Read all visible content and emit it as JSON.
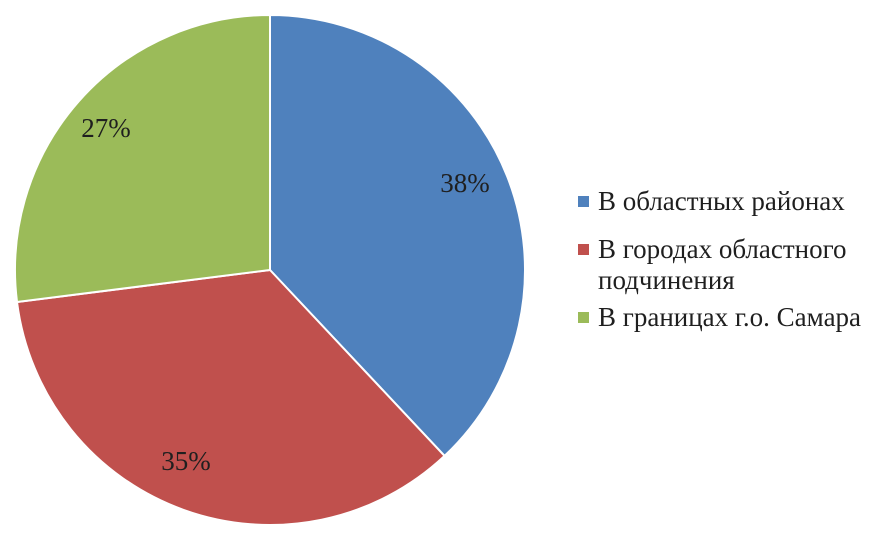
{
  "chart_data": {
    "type": "pie",
    "start_angle_deg": 0,
    "direction": "clockwise",
    "slices": [
      {
        "label": "В областных районах",
        "value": 38,
        "value_label": "38%",
        "color": "#4f81bd"
      },
      {
        "label": "В городах областного подчинения",
        "value": 35,
        "value_label": "35%",
        "color": "#c0504d"
      },
      {
        "label": "В границах г.о. Самара",
        "value": 27,
        "value_label": "27%",
        "color": "#9bbb59"
      }
    ],
    "legend": {
      "position": "right"
    }
  }
}
